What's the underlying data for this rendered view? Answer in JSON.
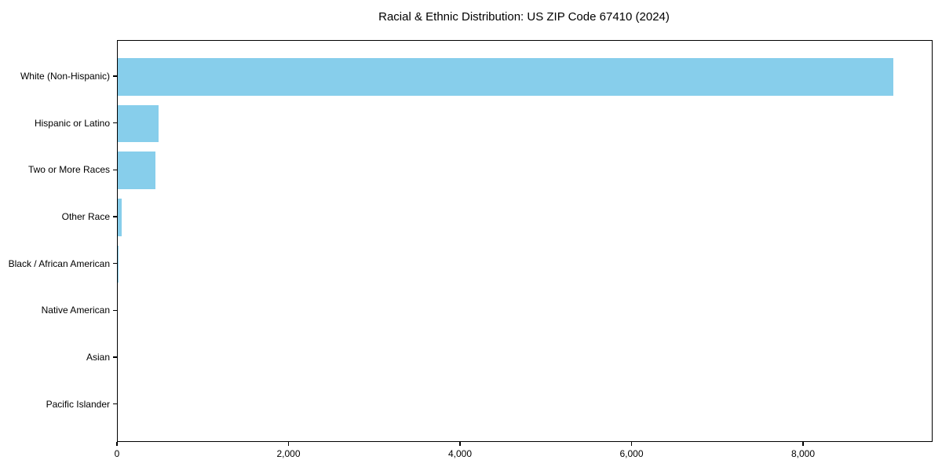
{
  "title": "Racial & Ethnic Distribution: US ZIP Code 67410 (2024)",
  "chart_data": {
    "type": "bar",
    "orientation": "horizontal",
    "title": "Racial & Ethnic Distribution: US ZIP Code 67410 (2024)",
    "xlabel": "",
    "ylabel": "",
    "categories": [
      "White (Non-Hispanic)",
      "Hispanic or Latino",
      "Two or More Races",
      "Other Race",
      "Black / African American",
      "Native American",
      "Asian",
      "Pacific Islander"
    ],
    "values": [
      9040,
      476,
      440,
      45,
      10,
      0,
      0,
      0
    ],
    "xlim": [
      0,
      9492
    ],
    "xticks": [
      0,
      2000,
      4000,
      6000,
      8000
    ],
    "xtick_labels": [
      "0",
      "2,000",
      "4,000",
      "6,000",
      "8,000"
    ],
    "bar_color": "#87CEEB",
    "axis_color": "#000000",
    "grid": false,
    "legend": null
  }
}
